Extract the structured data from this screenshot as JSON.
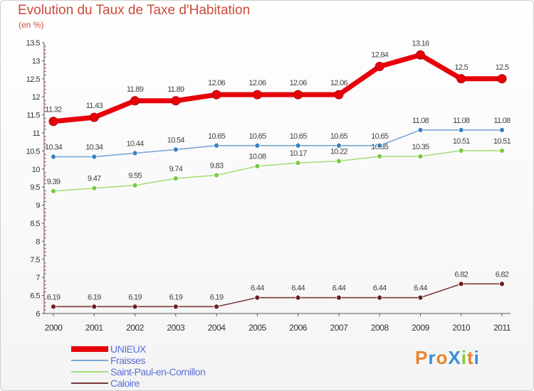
{
  "header": {
    "title": "Evolution du Taux de Taxe d'Habitation",
    "subtitle": "(en %)"
  },
  "logo": {
    "text": "ProXiti",
    "colors": [
      "#e8852b",
      "#3a8fd6",
      "#e8852b",
      "#3a8fd6",
      "#8cc63f",
      "#e8852b",
      "#3a8fd6"
    ]
  },
  "chart_data": {
    "type": "line",
    "x": [
      "2000",
      "2001",
      "2002",
      "2003",
      "2004",
      "2005",
      "2006",
      "2007",
      "2008",
      "2009",
      "2010",
      "2011"
    ],
    "ylim": [
      6,
      13.5
    ],
    "yticks": [
      "6",
      "6.5",
      "7",
      "7.5",
      "8",
      "8.5",
      "9",
      "9.5",
      "10",
      "10.5",
      "11",
      "11.5",
      "12",
      "12.5",
      "13",
      "13.5"
    ],
    "grid": false,
    "legend_position": "bottom-left",
    "series": [
      {
        "name": "UNIEUX",
        "color": "#e8000b",
        "marker": "#e8000b",
        "values": [
          11.32,
          11.43,
          11.89,
          11.89,
          12.06,
          12.06,
          12.06,
          12.06,
          12.84,
          13.16,
          12.5,
          12.5
        ],
        "labels": [
          "11.32",
          "11.43",
          "11.89",
          "11.89",
          "12.06",
          "12.06",
          "12.06",
          "12.06",
          "12.84",
          "13.16",
          "12.5",
          "12.5"
        ]
      },
      {
        "name": "Fraisses",
        "color": "#7aa6d6",
        "marker": "#3b7ec4",
        "values": [
          10.34,
          10.34,
          10.44,
          10.54,
          10.65,
          10.65,
          10.65,
          10.65,
          10.65,
          11.08,
          11.08,
          11.08
        ],
        "labels": [
          "10.34",
          "10.34",
          "10.44",
          "10.54",
          "10.65",
          "10.65",
          "10.65",
          "10.65",
          "10.65",
          "11.08",
          "11.08",
          "11.08"
        ]
      },
      {
        "name": "Saint-Paul-en-Cornillon",
        "color": "#a6e07a",
        "marker": "#7cc843",
        "values": [
          9.39,
          9.47,
          9.55,
          9.74,
          9.83,
          10.08,
          10.17,
          10.22,
          10.35,
          10.35,
          10.51,
          10.51
        ],
        "labels": [
          "9.39",
          "9.47",
          "9.55",
          "9.74",
          "9.83",
          "10.08",
          "10.17",
          "10.22",
          "10.35",
          "10.35",
          "10.51",
          "10.51"
        ]
      },
      {
        "name": "Caloire",
        "color": "#7a3a3a",
        "marker": "#6b1f1f",
        "values": [
          6.19,
          6.19,
          6.19,
          6.19,
          6.19,
          6.44,
          6.44,
          6.44,
          6.44,
          6.44,
          6.82,
          6.82
        ],
        "labels": [
          "6.19",
          "6.19",
          "6.19",
          "6.19",
          "6.19",
          "6.44",
          "6.44",
          "6.44",
          "6.44",
          "6.44",
          "6.82",
          "6.82"
        ]
      }
    ]
  }
}
